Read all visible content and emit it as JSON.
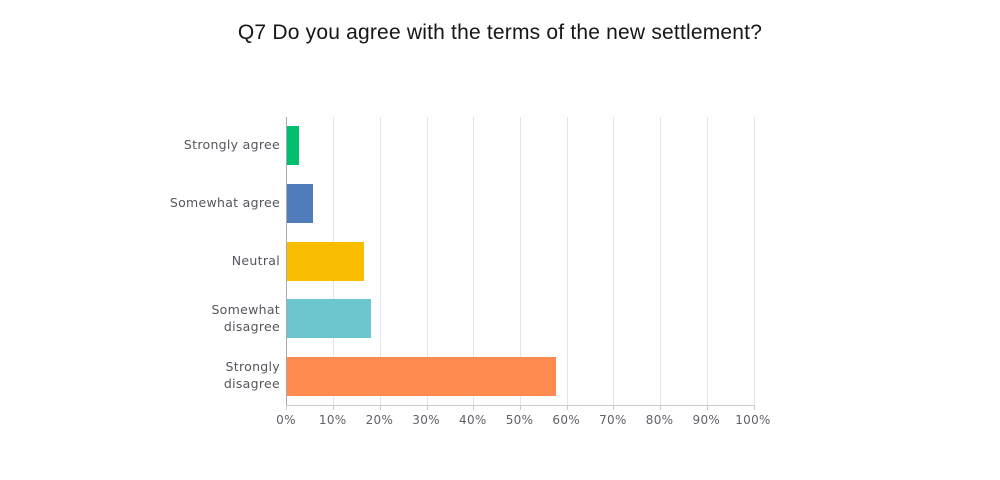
{
  "chart_data": {
    "type": "bar",
    "orientation": "horizontal",
    "title": "Q7 Do you agree with the terms of the new settlement?",
    "categories": [
      "Strongly agree",
      "Somewhat agree",
      "Neutral",
      "Somewhat disagree",
      "Strongly disagree"
    ],
    "category_display": [
      "Strongly agree",
      "Somewhat agree",
      "Neutral",
      "Somewhat\ndisagree",
      "Strongly\ndisagree"
    ],
    "values": [
      2.5,
      5.5,
      16.5,
      18,
      57.5
    ],
    "value_unit": "percent",
    "bar_colors": [
      "#00bf6f",
      "#507cb9",
      "#f9be00",
      "#6bc6cd",
      "#ff8b50"
    ],
    "x_ticks": [
      "0%",
      "10%",
      "20%",
      "30%",
      "40%",
      "50%",
      "60%",
      "70%",
      "80%",
      "90%",
      "100%"
    ],
    "xlim": [
      0,
      100
    ],
    "grid": true,
    "legend_position": "none"
  },
  "colors": {
    "background": "#ffffff",
    "gridline": "#e5e5e6",
    "y_axis_line": "#a7a9ac",
    "x_axis_line": "#c9cacc",
    "tick_mark": "#c9cacc",
    "category_label": "#53565c",
    "tick_label": "#5f6269",
    "title": "#161616"
  }
}
